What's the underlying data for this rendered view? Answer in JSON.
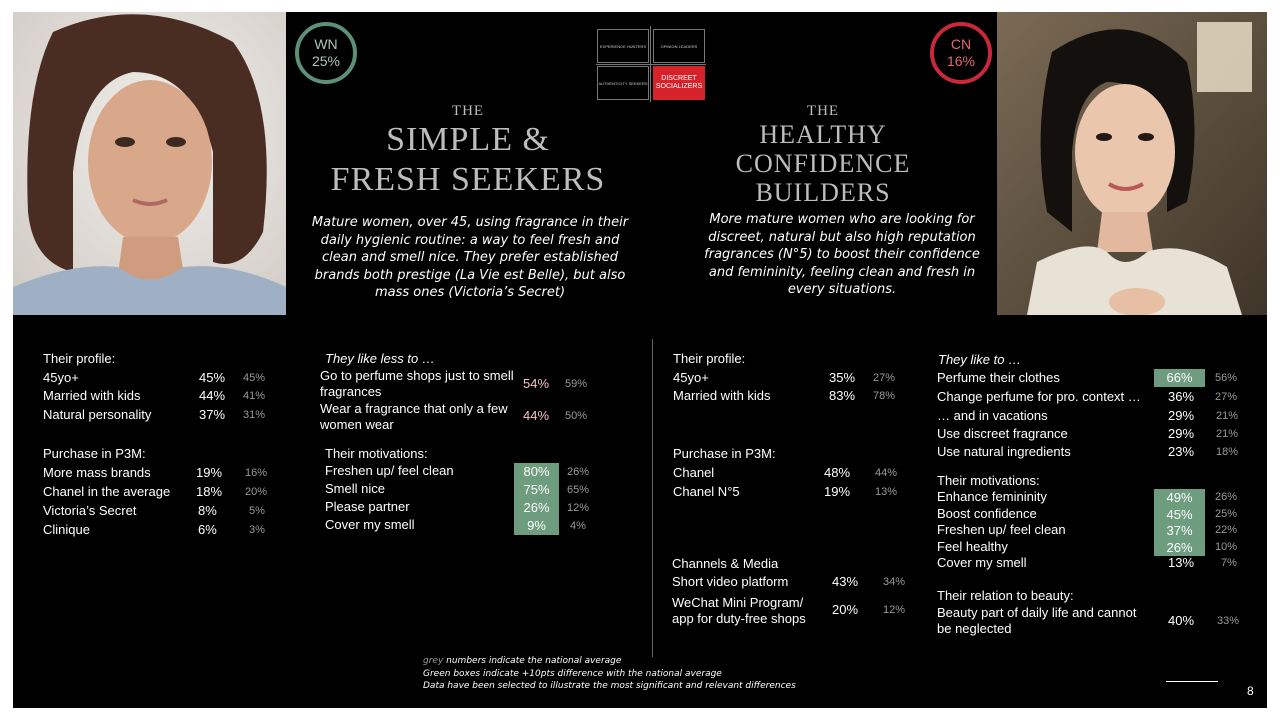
{
  "slide": {
    "page_number": "8"
  },
  "left": {
    "badge": {
      "code": "WN",
      "pct": "25%",
      "color": "#5e8f77"
    },
    "title": {
      "the": "THE",
      "line1": "SIMPLE &",
      "line2": "FRESH SEEKERS"
    },
    "description": "Mature women, over 45, using fragrance in their daily hygienic routine: a way to feel fresh and clean and smell nice. They prefer established brands both prestige (La Vie est Belle), but also mass ones (Victoria’s Secret)",
    "profile": {
      "header": "Their profile:",
      "rows": [
        {
          "label": "45yo+",
          "value": "45%",
          "avg": "45%"
        },
        {
          "label": "Married with kids",
          "value": "44%",
          "avg": "41%"
        },
        {
          "label": "Natural personality",
          "value": "37%",
          "avg": "31%"
        }
      ]
    },
    "purchase": {
      "header": "Purchase in P3M:",
      "rows": [
        {
          "label": "More mass brands",
          "value": "19%",
          "avg": "16%"
        },
        {
          "label": "Chanel in the average",
          "value": "18%",
          "avg": "20%"
        },
        {
          "label": "Victoria’s Secret",
          "value": "8%",
          "avg": "5%"
        },
        {
          "label": "Clinique",
          "value": "6%",
          "avg": "3%"
        }
      ]
    },
    "likes_less": {
      "header": "They like less to …",
      "rows": [
        {
          "label": "Go to perfume shops just to smell fragrances",
          "value": "54%",
          "avg": "59%"
        },
        {
          "label": "Wear a fragrance that only a few women wear",
          "value": "44%",
          "avg": "50%"
        }
      ]
    },
    "motivations": {
      "header": "Their motivations:",
      "rows": [
        {
          "label": "Freshen up/ feel clean",
          "value": "80%",
          "avg": "26%",
          "highlight": true
        },
        {
          "label": "Smell nice",
          "value": "75%",
          "avg": "65%",
          "highlight": true
        },
        {
          "label": "Please partner",
          "value": "26%",
          "avg": "12%",
          "highlight": true
        },
        {
          "label": "Cover my smell",
          "value": "9%",
          "avg": "4%",
          "highlight": true
        }
      ]
    }
  },
  "segment_map": {
    "quadrants": [
      "EXPERIENCE HUNTERS",
      "OPINION LEADERS",
      "AUTHENTICITY SEEKERS",
      "DISCREET SOCIALIZERS"
    ],
    "active_color": "#d5222b"
  },
  "right": {
    "badge": {
      "code": "CN",
      "pct": "16%",
      "color": "#c8283a"
    },
    "title": {
      "the": "THE",
      "line1": "HEALTHY",
      "line2": "CONFIDENCE",
      "line3": "BUILDERS"
    },
    "description": "More mature women who are looking for discreet, natural but also high reputation fragrances (N°5) to boost their confidence and femininity, feeling clean and fresh in every situations.",
    "profile": {
      "header": "Their profile:",
      "rows": [
        {
          "label": "45yo+",
          "value": "35%",
          "avg": "27%"
        },
        {
          "label": "Married with kids",
          "value": "83%",
          "avg": "78%"
        }
      ]
    },
    "purchase": {
      "header": "Purchase in P3M:",
      "rows": [
        {
          "label": "Chanel",
          "value": "48%",
          "avg": "44%"
        },
        {
          "label": "Chanel N°5",
          "value": "19%",
          "avg": "13%"
        }
      ]
    },
    "channels": {
      "header": "Channels & Media",
      "rows": [
        {
          "label": "Short video platform",
          "value": "43%",
          "avg": "34%"
        },
        {
          "label": "WeChat Mini Program/ app for duty-free shops",
          "value": "20%",
          "avg": "12%"
        }
      ]
    },
    "likes": {
      "header": "They like to …",
      "rows": [
        {
          "label": "Perfume their clothes",
          "value": "66%",
          "avg": "56%",
          "highlight": true
        },
        {
          "label": "Change perfume for pro. context …",
          "value": "36%",
          "avg": "27%"
        },
        {
          "label": "… and in vacations",
          "value": "29%",
          "avg": "21%"
        },
        {
          "label": "Use discreet fragrance",
          "value": "29%",
          "avg": "21%"
        },
        {
          "label": "Use natural ingredients",
          "value": "23%",
          "avg": "18%"
        }
      ]
    },
    "motivations": {
      "header": "Their motivations:",
      "rows": [
        {
          "label": "Enhance femininity",
          "value": "49%",
          "avg": "26%",
          "highlight": true
        },
        {
          "label": "Boost confidence",
          "value": "45%",
          "avg": "25%",
          "highlight": true
        },
        {
          "label": "Freshen up/ feel clean",
          "value": "37%",
          "avg": "22%",
          "highlight": true
        },
        {
          "label": "Feel healthy",
          "value": "26%",
          "avg": "10%",
          "highlight": true
        },
        {
          "label": "Cover my smell",
          "value": "13%",
          "avg": "7%"
        }
      ]
    },
    "beauty": {
      "header": "Their relation to beauty:",
      "rows": [
        {
          "label": "Beauty part of daily life and cannot be neglected",
          "value": "40%",
          "avg": "33%"
        }
      ]
    }
  },
  "footnote": {
    "grey_word": "grey",
    "line1_rest": " numbers indicate the national average",
    "line2": "Green boxes indicate +10pts difference with the national average",
    "line3": "Data have been selected to illustrate the most significant and relevant differences"
  }
}
